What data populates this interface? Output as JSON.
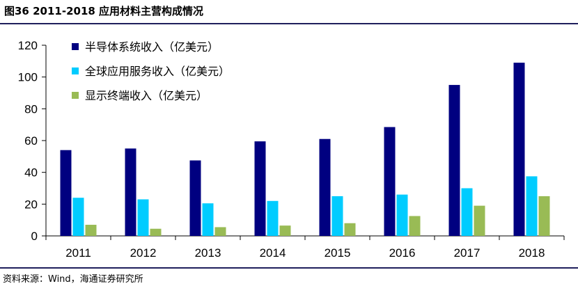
{
  "figure": {
    "title": "图36 2011-2018 应用材料主营构成情况",
    "source": "资料来源：Wind，海通证券研究所"
  },
  "colors": {
    "rule": "#1f1f5c",
    "semiconductor": "#000080",
    "global_services": "#00ccff",
    "display": "#99bb55",
    "axis": "#000000"
  },
  "chart_data": {
    "type": "bar",
    "title": "",
    "xlabel": "",
    "ylabel": "",
    "categories": [
      "2011",
      "2012",
      "2013",
      "2014",
      "2015",
      "2016",
      "2017",
      "2018"
    ],
    "ylim": [
      0,
      120
    ],
    "yticks": [
      0,
      20,
      40,
      60,
      80,
      100,
      120
    ],
    "grid": false,
    "legend_position": "top-left",
    "series": [
      {
        "name": "半导体系统收入（亿美元）",
        "color_key": "semiconductor",
        "values": [
          54,
          55,
          47.5,
          59.5,
          61,
          68.5,
          95,
          109
        ]
      },
      {
        "name": "全球应用服务收入（亿美元）",
        "color_key": "global_services",
        "values": [
          24,
          23,
          20.5,
          22,
          25,
          26,
          30,
          37.5
        ]
      },
      {
        "name": "显示终端收入（亿美元）",
        "color_key": "display",
        "values": [
          7,
          4.5,
          5.5,
          6.5,
          8,
          12.5,
          19,
          25
        ]
      }
    ]
  }
}
